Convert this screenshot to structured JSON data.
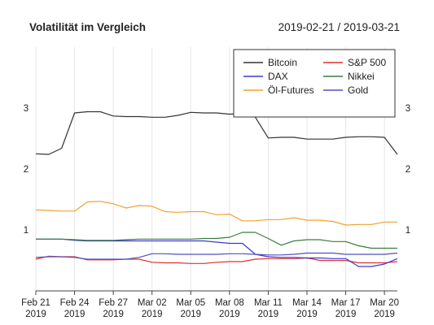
{
  "chart_data": {
    "type": "line",
    "title": "Volatilität im Vergleich",
    "date_range": "2019-02-21 / 2019-03-21",
    "ylim": [
      0,
      4.0
    ],
    "y_ticks": [
      1,
      2,
      3
    ],
    "grid": "vertical",
    "legend_position": "top-right",
    "x_ticks": [
      {
        "i": 0,
        "label": "Feb 21\n2019"
      },
      {
        "i": 3,
        "label": "Feb 24\n2019"
      },
      {
        "i": 6,
        "label": "Feb 27\n2019"
      },
      {
        "i": 9,
        "label": "Mar 02\n2019"
      },
      {
        "i": 12,
        "label": "Mar 05\n2019"
      },
      {
        "i": 15,
        "label": "Mar 08\n2019"
      },
      {
        "i": 18,
        "label": "Mar 11\n2019"
      },
      {
        "i": 21,
        "label": "Mar 14\n2019"
      },
      {
        "i": 24,
        "label": "Mar 17\n2019"
      },
      {
        "i": 27,
        "label": "Mar 20\n2019"
      }
    ],
    "x": [
      "2019-02-21",
      "2019-02-22",
      "2019-02-23",
      "2019-02-24",
      "2019-02-25",
      "2019-02-26",
      "2019-02-27",
      "2019-02-28",
      "2019-03-01",
      "2019-03-02",
      "2019-03-03",
      "2019-03-04",
      "2019-03-05",
      "2019-03-06",
      "2019-03-07",
      "2019-03-08",
      "2019-03-09",
      "2019-03-10",
      "2019-03-11",
      "2019-03-12",
      "2019-03-13",
      "2019-03-14",
      "2019-03-15",
      "2019-03-16",
      "2019-03-17",
      "2019-03-18",
      "2019-03-19",
      "2019-03-20",
      "2019-03-21"
    ],
    "series": [
      {
        "name": "Bitcoin",
        "color": "#333333",
        "values": [
          2.25,
          2.24,
          2.34,
          2.92,
          2.94,
          2.94,
          2.87,
          2.86,
          2.86,
          2.85,
          2.85,
          2.88,
          2.93,
          2.92,
          2.92,
          2.9,
          2.91,
          2.85,
          2.51,
          2.52,
          2.52,
          2.49,
          2.49,
          2.49,
          2.52,
          2.53,
          2.53,
          2.52,
          2.24
        ]
      },
      {
        "name": "S&P 500",
        "color": "#e03030",
        "values": [
          0.52,
          0.57,
          0.56,
          0.56,
          0.51,
          0.51,
          0.51,
          0.52,
          0.52,
          0.47,
          0.46,
          0.46,
          0.45,
          0.45,
          0.47,
          0.48,
          0.48,
          0.52,
          0.53,
          0.53,
          0.53,
          0.54,
          0.5,
          0.5,
          0.5,
          0.46,
          0.46,
          0.46,
          0.48
        ]
      },
      {
        "name": "DAX",
        "color": "#3a3acc",
        "values": [
          0.85,
          0.85,
          0.85,
          0.83,
          0.82,
          0.82,
          0.82,
          0.82,
          0.82,
          0.82,
          0.82,
          0.82,
          0.82,
          0.82,
          0.8,
          0.78,
          0.78,
          0.6,
          0.56,
          0.55,
          0.55,
          0.54,
          0.54,
          0.53,
          0.53,
          0.4,
          0.4,
          0.44,
          0.53
        ]
      },
      {
        "name": "Nikkei",
        "color": "#3a7d3a",
        "values": [
          0.85,
          0.85,
          0.85,
          0.84,
          0.83,
          0.83,
          0.83,
          0.84,
          0.85,
          0.85,
          0.85,
          0.85,
          0.85,
          0.86,
          0.86,
          0.88,
          0.96,
          0.96,
          0.86,
          0.75,
          0.82,
          0.84,
          0.84,
          0.81,
          0.81,
          0.74,
          0.7,
          0.7,
          0.7
        ]
      },
      {
        "name": "Öl-Futures",
        "color": "#f0a030",
        "values": [
          1.33,
          1.32,
          1.31,
          1.31,
          1.46,
          1.47,
          1.43,
          1.36,
          1.4,
          1.39,
          1.3,
          1.29,
          1.3,
          1.3,
          1.25,
          1.26,
          1.15,
          1.15,
          1.17,
          1.17,
          1.2,
          1.16,
          1.16,
          1.14,
          1.08,
          1.09,
          1.09,
          1.13,
          1.13
        ]
      },
      {
        "name": "Gold",
        "color": "#5050bb",
        "values": [
          0.55,
          0.56,
          0.56,
          0.55,
          0.52,
          0.52,
          0.52,
          0.52,
          0.55,
          0.61,
          0.61,
          0.6,
          0.6,
          0.6,
          0.6,
          0.61,
          0.61,
          0.6,
          0.59,
          0.59,
          0.6,
          0.62,
          0.62,
          0.62,
          0.6,
          0.6,
          0.6,
          0.6,
          0.62
        ]
      }
    ]
  }
}
